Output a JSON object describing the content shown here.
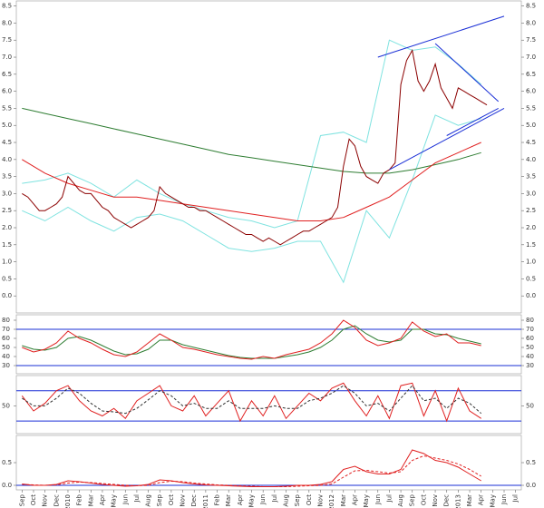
{
  "chart_data": [
    {
      "type": "line",
      "xlim": [
        -0.5,
        43.5
      ],
      "ylim": [
        -0.5,
        8.65
      ],
      "yticks": [
        {
          "value": 0,
          "label": "0.0"
        },
        {
          "value": 0.5,
          "label": "0.5"
        },
        {
          "value": 1,
          "label": "1.0"
        },
        {
          "value": 1.5,
          "label": "1.5"
        },
        {
          "value": 2,
          "label": "2.0"
        },
        {
          "value": 2.5,
          "label": "2.5"
        },
        {
          "value": 3,
          "label": "3.0"
        },
        {
          "value": 3.5,
          "label": "3.5"
        },
        {
          "value": 4,
          "label": "4.0"
        },
        {
          "value": 4.5,
          "label": "4.5"
        },
        {
          "value": 5,
          "label": "5.0"
        },
        {
          "value": 5.5,
          "label": "5.5"
        },
        {
          "value": 6,
          "label": "6.0"
        },
        {
          "value": 6.5,
          "label": "6.5"
        },
        {
          "value": 7,
          "label": "7.0"
        },
        {
          "value": 7.5,
          "label": "7.5"
        },
        {
          "value": 8,
          "label": "8.0"
        },
        {
          "value": 8.5,
          "label": "8.5"
        }
      ],
      "series": [
        {
          "color": "#7fe3e0",
          "x": [
            0,
            2,
            4,
            6,
            8,
            10,
            12,
            14,
            16,
            18,
            20,
            22,
            24,
            26,
            28,
            30,
            32,
            34,
            36,
            38,
            40
          ],
          "values": [
            3.3,
            3.4,
            3.6,
            3.3,
            2.9,
            3.4,
            3.0,
            2.7,
            2.5,
            2.3,
            2.2,
            2.0,
            2.2,
            4.7,
            4.8,
            4.5,
            7.5,
            7.2,
            7.3,
            6.8,
            6.2
          ]
        },
        {
          "color": "#7fe3e0",
          "x": [
            0,
            2,
            4,
            6,
            8,
            10,
            12,
            14,
            16,
            18,
            20,
            22,
            24,
            26,
            28,
            30,
            32,
            34,
            36,
            38,
            40
          ],
          "values": [
            2.5,
            2.2,
            2.6,
            2.2,
            1.9,
            2.3,
            2.4,
            2.2,
            1.8,
            1.4,
            1.3,
            1.4,
            1.6,
            1.6,
            0.4,
            2.5,
            1.7,
            3.4,
            5.3,
            5.0,
            5.2
          ]
        },
        {
          "color": "#2e7d32",
          "x": [
            0,
            2,
            4,
            6,
            8,
            10,
            12,
            14,
            16,
            18,
            20,
            22,
            24,
            26,
            28,
            30,
            32,
            34,
            36,
            38,
            40
          ],
          "values": [
            5.5,
            5.35,
            5.2,
            5.05,
            4.9,
            4.75,
            4.6,
            4.45,
            4.3,
            4.15,
            4.05,
            3.95,
            3.85,
            3.75,
            3.65,
            3.6,
            3.6,
            3.7,
            3.85,
            4.0,
            4.2
          ]
        },
        {
          "color": "#e02020",
          "x": [
            0,
            2,
            4,
            6,
            8,
            10,
            12,
            14,
            16,
            18,
            20,
            22,
            24,
            26,
            28,
            30,
            32,
            34,
            36,
            38,
            40
          ],
          "values": [
            4.0,
            3.6,
            3.3,
            3.1,
            2.9,
            2.9,
            2.8,
            2.7,
            2.6,
            2.5,
            2.4,
            2.3,
            2.2,
            2.2,
            2.3,
            2.6,
            2.9,
            3.4,
            3.9,
            4.2,
            4.5
          ]
        },
        {
          "color": "#8b0000",
          "x": [
            0,
            0.5,
            1,
            1.5,
            2,
            2.5,
            3,
            3.5,
            4,
            4.5,
            5,
            5.5,
            6,
            6.5,
            7,
            7.5,
            8,
            8.5,
            9,
            9.5,
            10,
            10.5,
            11,
            11.5,
            12,
            12.5,
            13,
            13.5,
            14,
            14.5,
            15,
            15.5,
            16,
            16.5,
            17,
            17.5,
            18,
            18.5,
            19,
            19.5,
            20,
            20.5,
            21,
            21.5,
            22,
            22.5,
            23,
            23.5,
            24,
            24.5,
            25,
            25.5,
            26,
            26.5,
            27,
            27.5,
            28,
            28.5,
            29,
            29.5,
            30,
            30.5,
            31,
            31.5,
            32,
            32.5,
            33,
            33.5,
            34,
            34.5,
            35,
            35.5,
            36,
            36.5,
            37,
            37.5,
            38,
            38.5,
            39,
            39.5,
            40,
            40.5
          ],
          "values": [
            3.0,
            2.9,
            2.7,
            2.5,
            2.5,
            2.6,
            2.7,
            2.9,
            3.5,
            3.3,
            3.1,
            3.0,
            3.0,
            2.8,
            2.6,
            2.5,
            2.3,
            2.2,
            2.1,
            2.0,
            2.1,
            2.2,
            2.3,
            2.5,
            3.2,
            3.0,
            2.9,
            2.8,
            2.7,
            2.6,
            2.6,
            2.5,
            2.5,
            2.4,
            2.3,
            2.2,
            2.1,
            2.0,
            1.9,
            1.8,
            1.8,
            1.7,
            1.6,
            1.7,
            1.6,
            1.5,
            1.6,
            1.7,
            1.8,
            1.9,
            1.9,
            2.0,
            2.1,
            2.2,
            2.3,
            2.6,
            3.8,
            4.6,
            4.4,
            3.8,
            3.5,
            3.4,
            3.3,
            3.6,
            3.7,
            3.9,
            6.2,
            6.9,
            7.2,
            6.3,
            6.0,
            6.3,
            6.8,
            6.1,
            5.8,
            5.5,
            6.1,
            6.0,
            5.9,
            5.8,
            5.7,
            5.6
          ]
        },
        {
          "color": "#1a2fd6",
          "x": [
            31,
            42
          ],
          "values": [
            7.0,
            8.2
          ]
        },
        {
          "color": "#1a2fd6",
          "x": [
            32,
            42
          ],
          "values": [
            3.7,
            5.5
          ]
        },
        {
          "color": "#1a2fd6",
          "x": [
            36,
            41.5
          ],
          "values": [
            7.4,
            5.7
          ]
        },
        {
          "color": "#1a2fd6",
          "x": [
            37,
            41.5
          ],
          "values": [
            4.7,
            5.5
          ]
        }
      ]
    },
    {
      "type": "line",
      "xlim": [
        -0.5,
        43.5
      ],
      "ylim": [
        21,
        86
      ],
      "yticks": [
        30,
        40,
        50,
        60,
        70,
        80
      ],
      "hlines": [
        70,
        30
      ],
      "hline_color": "#1a2fd6",
      "series": [
        {
          "color": "#2e7d32",
          "x": [
            0,
            1,
            2,
            3,
            4,
            5,
            6,
            7,
            8,
            9,
            10,
            11,
            12,
            13,
            14,
            15,
            16,
            17,
            18,
            19,
            20,
            21,
            22,
            23,
            24,
            25,
            26,
            27,
            28,
            29,
            30,
            31,
            32,
            33,
            34,
            35,
            36,
            37,
            38,
            39,
            40
          ],
          "values": [
            52,
            48,
            47,
            50,
            60,
            62,
            58,
            52,
            46,
            42,
            43,
            48,
            58,
            58,
            53,
            50,
            47,
            44,
            41,
            39,
            38,
            38,
            38,
            40,
            42,
            45,
            50,
            58,
            70,
            74,
            65,
            58,
            56,
            58,
            70,
            70,
            65,
            64,
            60,
            57,
            54
          ]
        },
        {
          "color": "#e02020",
          "x": [
            0,
            1,
            2,
            3,
            4,
            5,
            6,
            7,
            8,
            9,
            10,
            11,
            12,
            13,
            14,
            15,
            16,
            17,
            18,
            19,
            20,
            21,
            22,
            23,
            24,
            25,
            26,
            27,
            28,
            29,
            30,
            31,
            32,
            33,
            34,
            35,
            36,
            37,
            38,
            39,
            40
          ],
          "values": [
            50,
            45,
            48,
            55,
            68,
            60,
            55,
            48,
            42,
            40,
            45,
            55,
            65,
            58,
            50,
            48,
            45,
            42,
            40,
            38,
            37,
            40,
            38,
            42,
            45,
            48,
            55,
            65,
            80,
            72,
            58,
            52,
            55,
            60,
            78,
            68,
            62,
            65,
            55,
            55,
            52
          ]
        }
      ]
    },
    {
      "type": "line",
      "xlim": [
        -0.5,
        43.5
      ],
      "ylim": [
        -5,
        110
      ],
      "yticks": [
        50
      ],
      "hlines": [
        80,
        20
      ],
      "hline_color": "#1a2fd6",
      "series": [
        {
          "color": "#e02020",
          "x": [
            0,
            1,
            2,
            3,
            4,
            5,
            6,
            7,
            8,
            9,
            10,
            11,
            12,
            13,
            14,
            15,
            16,
            17,
            18,
            19,
            20,
            21,
            22,
            23,
            24,
            25,
            26,
            27,
            28,
            29,
            30,
            31,
            32,
            33,
            34,
            35,
            36,
            37,
            38,
            39,
            40
          ],
          "values": [
            70,
            40,
            55,
            80,
            90,
            60,
            40,
            30,
            45,
            25,
            60,
            75,
            90,
            50,
            40,
            70,
            30,
            55,
            80,
            20,
            60,
            30,
            70,
            25,
            50,
            75,
            60,
            85,
            95,
            60,
            30,
            70,
            25,
            90,
            95,
            30,
            80,
            20,
            85,
            40,
            25
          ]
        },
        {
          "color": "#333333",
          "dashed": true,
          "x": [
            0,
            1,
            2,
            3,
            4,
            5,
            6,
            7,
            8,
            9,
            10,
            11,
            12,
            13,
            14,
            15,
            16,
            17,
            18,
            19,
            20,
            21,
            22,
            23,
            24,
            25,
            26,
            27,
            28,
            29,
            30,
            31,
            32,
            33,
            34,
            35,
            36,
            37,
            38,
            39,
            40
          ],
          "values": [
            65,
            50,
            50,
            65,
            85,
            75,
            55,
            40,
            38,
            35,
            45,
            62,
            80,
            70,
            50,
            55,
            45,
            45,
            60,
            45,
            45,
            45,
            50,
            45,
            45,
            60,
            65,
            75,
            90,
            75,
            50,
            55,
            40,
            65,
            90,
            60,
            65,
            45,
            65,
            55,
            35
          ]
        }
      ]
    },
    {
      "type": "line",
      "xlim": [
        -0.5,
        43.5
      ],
      "ylim": [
        -0.1,
        1.1
      ],
      "yticks": [
        {
          "value": 0,
          "label": "0.0"
        },
        {
          "value": 0.5,
          "label": "0.5"
        }
      ],
      "hlines": [
        0
      ],
      "hline_color": "#1a2fd6",
      "categories": [
        "Sep",
        "Oct",
        "Nov",
        "Dec",
        "2010",
        "Feb",
        "Mar",
        "Apr",
        "May",
        "Jun",
        "Jul",
        "Aug",
        "Sep",
        "Oct",
        "Nov",
        "Dec",
        "2011",
        "Feb",
        "Mar",
        "Apr",
        "May",
        "Jun",
        "Jul",
        "Aug",
        "Sep",
        "Oct",
        "Nov",
        "2012",
        "Mar",
        "Apr",
        "May",
        "Jun",
        "Jul",
        "Aug",
        "Sep",
        "Oct",
        "Nov",
        "Dec",
        "2013",
        "Mar",
        "Apr",
        "May",
        "Jun",
        "Jul"
      ],
      "series": [
        {
          "color": "#e02020",
          "x": [
            0,
            1,
            2,
            3,
            4,
            5,
            6,
            7,
            8,
            9,
            10,
            11,
            12,
            13,
            14,
            15,
            16,
            17,
            18,
            19,
            20,
            21,
            22,
            23,
            24,
            25,
            26,
            27,
            28,
            29,
            30,
            31,
            32,
            33,
            34,
            35,
            36,
            37,
            38,
            39,
            40
          ],
          "values": [
            0.03,
            0.0,
            0.0,
            0.02,
            0.1,
            0.08,
            0.05,
            0.02,
            0.0,
            -0.02,
            -0.01,
            0.02,
            0.12,
            0.1,
            0.06,
            0.03,
            0.01,
            0.0,
            -0.01,
            -0.02,
            -0.03,
            -0.03,
            -0.03,
            -0.02,
            0.0,
            0.0,
            0.02,
            0.08,
            0.35,
            0.42,
            0.3,
            0.25,
            0.25,
            0.35,
            0.78,
            0.7,
            0.55,
            0.5,
            0.4,
            0.25,
            0.1
          ]
        },
        {
          "color": "#e02020",
          "dashed": true,
          "x": [
            0,
            1,
            2,
            3,
            4,
            5,
            6,
            7,
            8,
            9,
            10,
            11,
            12,
            13,
            14,
            15,
            16,
            17,
            18,
            19,
            20,
            21,
            22,
            23,
            24,
            25,
            26,
            27,
            28,
            29,
            30,
            31,
            32,
            33,
            34,
            35,
            36,
            37,
            38,
            39,
            40
          ],
          "values": [
            0.02,
            0.01,
            0.0,
            0.01,
            0.05,
            0.07,
            0.06,
            0.04,
            0.02,
            0.0,
            -0.01,
            0.0,
            0.06,
            0.09,
            0.08,
            0.05,
            0.03,
            0.01,
            0.0,
            -0.01,
            -0.02,
            -0.03,
            -0.03,
            -0.03,
            -0.02,
            -0.01,
            0.0,
            0.03,
            0.18,
            0.32,
            0.33,
            0.3,
            0.27,
            0.3,
            0.55,
            0.65,
            0.6,
            0.55,
            0.47,
            0.35,
            0.2
          ]
        }
      ]
    }
  ]
}
